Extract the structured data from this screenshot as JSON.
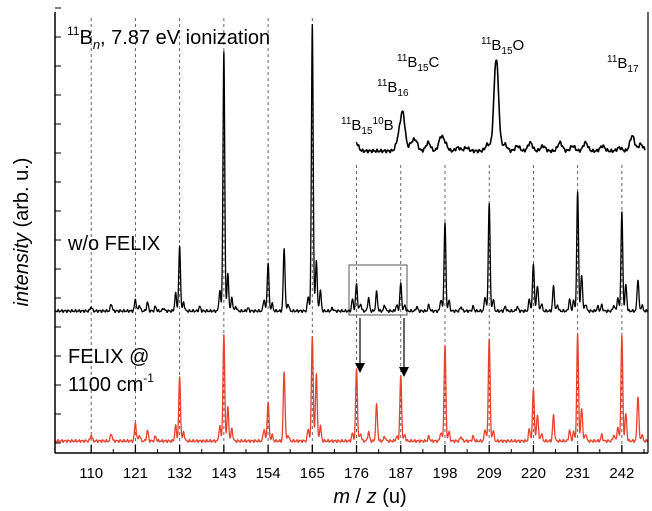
{
  "chart_data": {
    "type": "line",
    "title": "",
    "xlabel_parts": [
      "m",
      " / ",
      "z",
      " (u)"
    ],
    "ylabel_parts": [
      "intensity",
      " (arb. u.)"
    ],
    "xlim": [
      101,
      248.5
    ],
    "x_ticks": [
      110,
      121,
      132,
      143,
      154,
      165,
      176,
      187,
      198,
      209,
      220,
      231,
      242
    ],
    "minor_ticks": [
      115.5,
      126.5,
      137.5,
      148.5,
      159.5,
      170.5,
      181.5,
      192.5,
      203.5,
      214.5,
      225.5,
      236.5,
      247.5
    ],
    "gridlines_x": [
      110,
      121,
      132,
      143,
      154,
      165
    ],
    "grid": "dashed vertical lines at multiples of 11 u",
    "annotations": {
      "top_left": {
        "sup": "11",
        "base": "B",
        "sub": "n",
        "rest": ", 7.87 eV ionization"
      },
      "wo_felix": "w/o FELIX",
      "felix_line1": "FELIX @",
      "felix_line2_base": "1100 cm",
      "felix_line2_sup": "-1"
    },
    "inset_labels": [
      {
        "id": "b15-10b",
        "parts": [
          [
            "sup",
            "11"
          ],
          [
            "base",
            "B"
          ],
          [
            "sub",
            "15"
          ],
          [
            "sup",
            "10"
          ],
          [
            "base",
            "B"
          ]
        ]
      },
      {
        "id": "b16",
        "parts": [
          [
            "sup",
            "11"
          ],
          [
            "base",
            "B"
          ],
          [
            "sub",
            "16"
          ]
        ]
      },
      {
        "id": "b15c",
        "parts": [
          [
            "sup",
            "11"
          ],
          [
            "base",
            "B"
          ],
          [
            "sub",
            "15"
          ],
          [
            "base",
            "C"
          ]
        ]
      },
      {
        "id": "b15o",
        "parts": [
          [
            "sup",
            "11"
          ],
          [
            "base",
            "B"
          ],
          [
            "sub",
            "15"
          ],
          [
            "base",
            "O"
          ]
        ]
      },
      {
        "id": "b17",
        "parts": [
          [
            "sup",
            "11"
          ],
          [
            "base",
            "B"
          ],
          [
            "sub",
            "17"
          ]
        ]
      }
    ],
    "series": [
      {
        "name": "w/o FELIX",
        "color": "#000000",
        "baseline": 0.0,
        "peaks": [
          [
            110.0,
            0.03
          ],
          [
            115.0,
            0.05
          ],
          [
            121.0,
            0.08
          ],
          [
            122.0,
            0.04
          ],
          [
            124.0,
            0.06
          ],
          [
            126.0,
            0.03
          ],
          [
            128.0,
            0.02
          ],
          [
            131.0,
            0.12
          ],
          [
            132.0,
            0.44
          ],
          [
            133.0,
            0.06
          ],
          [
            137.0,
            0.03
          ],
          [
            142.0,
            0.14
          ],
          [
            143.0,
            1.78
          ],
          [
            144.0,
            0.25
          ],
          [
            145.0,
            0.09
          ],
          [
            146.0,
            0.03
          ],
          [
            149.0,
            0.02
          ],
          [
            153.0,
            0.08
          ],
          [
            154.0,
            0.33
          ],
          [
            155.0,
            0.05
          ],
          [
            158.0,
            0.43
          ],
          [
            159.0,
            0.05
          ],
          [
            164.0,
            0.1
          ],
          [
            165.0,
            1.98
          ],
          [
            166.0,
            0.35
          ],
          [
            167.0,
            0.14
          ],
          [
            170.0,
            0.02
          ],
          [
            175.0,
            0.08
          ],
          [
            176.0,
            0.19
          ],
          [
            177.0,
            0.05
          ],
          [
            179.0,
            0.09
          ],
          [
            181.0,
            0.13
          ],
          [
            183.0,
            0.04
          ],
          [
            186.0,
            0.04
          ],
          [
            187.0,
            0.19
          ],
          [
            188.0,
            0.04
          ],
          [
            191.0,
            0.03
          ],
          [
            194.0,
            0.04
          ],
          [
            197.0,
            0.08
          ],
          [
            198.0,
            0.61
          ],
          [
            199.0,
            0.07
          ],
          [
            202.0,
            0.03
          ],
          [
            205.0,
            0.03
          ],
          [
            208.0,
            0.1
          ],
          [
            209.0,
            0.75
          ],
          [
            210.0,
            0.08
          ],
          [
            213.0,
            0.03
          ],
          [
            216.0,
            0.03
          ],
          [
            219.0,
            0.08
          ],
          [
            220.0,
            0.33
          ],
          [
            221.0,
            0.18
          ],
          [
            222.0,
            0.05
          ],
          [
            225.0,
            0.17
          ],
          [
            226.0,
            0.04
          ],
          [
            229.0,
            0.08
          ],
          [
            230.0,
            0.07
          ],
          [
            231.0,
            0.82
          ],
          [
            232.0,
            0.25
          ],
          [
            233.0,
            0.05
          ],
          [
            236.0,
            0.03
          ],
          [
            237.0,
            0.04
          ],
          [
            240.0,
            0.04
          ],
          [
            241.0,
            0.09
          ],
          [
            242.0,
            0.68
          ],
          [
            243.0,
            0.18
          ],
          [
            246.0,
            0.22
          ],
          [
            247.0,
            0.04
          ]
        ]
      },
      {
        "name": "FELIX @ 1100 cm-1",
        "color": "#e8412c",
        "baseline": 0.0,
        "peaks": [
          [
            110.0,
            0.04
          ],
          [
            115.0,
            0.05
          ],
          [
            121.0,
            0.12
          ],
          [
            122.0,
            0.04
          ],
          [
            124.0,
            0.07
          ],
          [
            126.0,
            0.03
          ],
          [
            131.0,
            0.1
          ],
          [
            132.0,
            0.42
          ],
          [
            133.0,
            0.06
          ],
          [
            142.0,
            0.1
          ],
          [
            143.0,
            0.7
          ],
          [
            144.0,
            0.22
          ],
          [
            145.0,
            0.08
          ],
          [
            153.0,
            0.08
          ],
          [
            154.0,
            0.26
          ],
          [
            155.0,
            0.04
          ],
          [
            158.0,
            0.46
          ],
          [
            159.0,
            0.04
          ],
          [
            164.0,
            0.08
          ],
          [
            165.0,
            0.7
          ],
          [
            166.0,
            0.45
          ],
          [
            167.0,
            0.1
          ],
          [
            175.0,
            0.05
          ],
          [
            176.0,
            0.48
          ],
          [
            177.0,
            0.05
          ],
          [
            179.0,
            0.06
          ],
          [
            181.0,
            0.24
          ],
          [
            183.0,
            0.03
          ],
          [
            186.0,
            0.03
          ],
          [
            187.0,
            0.43
          ],
          [
            188.0,
            0.04
          ],
          [
            194.0,
            0.03
          ],
          [
            197.0,
            0.06
          ],
          [
            198.0,
            0.64
          ],
          [
            199.0,
            0.06
          ],
          [
            202.0,
            0.03
          ],
          [
            205.0,
            0.03
          ],
          [
            208.0,
            0.08
          ],
          [
            209.0,
            0.69
          ],
          [
            210.0,
            0.07
          ],
          [
            219.0,
            0.08
          ],
          [
            220.0,
            0.35
          ],
          [
            221.0,
            0.18
          ],
          [
            222.0,
            0.05
          ],
          [
            225.0,
            0.17
          ],
          [
            229.0,
            0.07
          ],
          [
            230.0,
            0.06
          ],
          [
            231.0,
            0.71
          ],
          [
            232.0,
            0.22
          ],
          [
            233.0,
            0.05
          ],
          [
            237.0,
            0.04
          ],
          [
            240.0,
            0.04
          ],
          [
            241.0,
            0.09
          ],
          [
            242.0,
            0.7
          ],
          [
            243.0,
            0.18
          ],
          [
            246.0,
            0.3
          ],
          [
            247.0,
            0.04
          ]
        ]
      },
      {
        "name": "inset",
        "color": "#000000",
        "baseline": 0.0,
        "peaks": [
          [
            176.0,
            0.05
          ],
          [
            186.0,
            0.07
          ],
          [
            187.0,
            0.22
          ],
          [
            189.0,
            0.04
          ],
          [
            190.0,
            0.06
          ],
          [
            193.0,
            0.05
          ],
          [
            196.0,
            0.08
          ],
          [
            197.0,
            0.04
          ],
          [
            200.0,
            0.02
          ],
          [
            202.0,
            0.02
          ],
          [
            207.0,
            0.04
          ],
          [
            209.0,
            0.55
          ],
          [
            211.0,
            0.04
          ],
          [
            214.0,
            0.03
          ],
          [
            217.0,
            0.05
          ],
          [
            220.0,
            0.03
          ],
          [
            224.0,
            0.05
          ],
          [
            227.0,
            0.03
          ],
          [
            230.0,
            0.05
          ],
          [
            234.0,
            0.03
          ],
          [
            238.0,
            0.02
          ],
          [
            241.0,
            0.09
          ],
          [
            243.0,
            0.04
          ]
        ]
      }
    ]
  }
}
